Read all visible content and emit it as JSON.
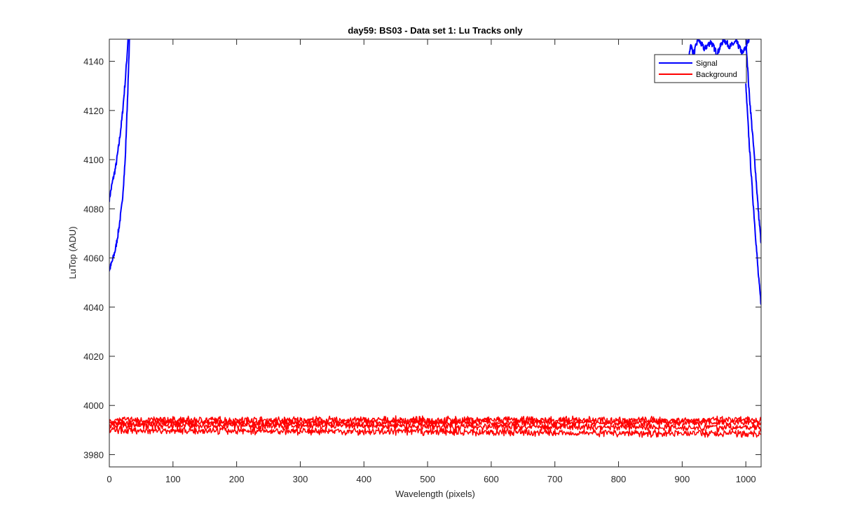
{
  "chart_data": {
    "type": "line",
    "title": "day59: BS03 - Data set 1: Lu Tracks only",
    "xlabel": "Wavelength (pixels)",
    "ylabel": "LuTop (ADU)",
    "xlim": [
      0,
      1024
    ],
    "ylim": [
      3975,
      4149
    ],
    "xticks": [
      0,
      100,
      200,
      300,
      400,
      500,
      600,
      700,
      800,
      900,
      1000
    ],
    "yticks": [
      3980,
      4000,
      4020,
      4040,
      4060,
      4080,
      4100,
      4120,
      4140
    ],
    "grid": false,
    "legend_position": "top-right",
    "legend": [
      "Signal",
      "Background"
    ],
    "colors": {
      "signal": "#0000ff",
      "background": "#ff0000"
    },
    "series": [
      {
        "name": "Signal",
        "color": "#0000ff",
        "lines": [
          {
            "x": [
              0,
              5,
              10,
              15,
              20,
              25,
              28,
              30
            ],
            "y": [
              4084,
              4091,
              4097,
              4106,
              4117,
              4132,
              4143,
              4152
            ]
          },
          {
            "x": [
              0,
              5,
              10,
              15,
              20,
              25,
              30,
              32
            ],
            "y": [
              4055,
              4059,
              4064,
              4072,
              4082,
              4100,
              4135,
              4152
            ]
          },
          {
            "x": [
              910,
              913,
              918,
              925,
              935,
              945,
              955,
              965,
              975,
              985,
              995,
              1005
            ],
            "y": [
              4140,
              4147,
              4143,
              4149,
              4145,
              4148,
              4143,
              4149,
              4146,
              4148,
              4143,
              4149
            ]
          },
          {
            "x": [
              1000,
              1005,
              1010,
              1015,
              1020,
              1024
            ],
            "y": [
              4150,
              4128,
              4112,
              4096,
              4078,
              4066
            ]
          },
          {
            "x": [
              1000,
              1005,
              1010,
              1015,
              1020,
              1024
            ],
            "y": [
              4130,
              4108,
              4088,
              4070,
              4052,
              4041
            ]
          }
        ]
      },
      {
        "name": "Background",
        "color": "#ff0000",
        "lines": [
          {
            "x": [
              0,
              1024
            ],
            "y": [
              3994,
              3994
            ]
          },
          {
            "x": [
              0,
              1024
            ],
            "y": [
              3993,
              3993
            ]
          },
          {
            "x": [
              0,
              1024
            ],
            "y": [
              3992,
              3991
            ]
          },
          {
            "x": [
              0,
              1024
            ],
            "y": [
              3990,
              3988.5
            ]
          }
        ],
        "noise_amplitude": 1.8
      }
    ]
  }
}
